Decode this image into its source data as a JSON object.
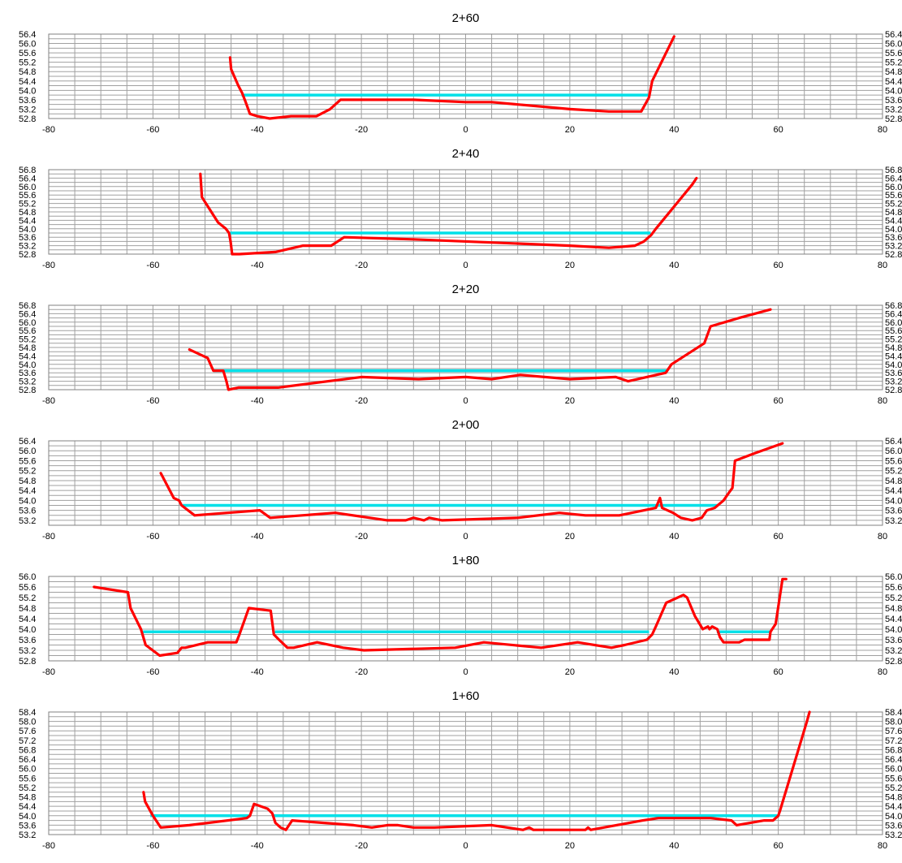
{
  "chart_data": [
    {
      "type": "line",
      "title": "2+60",
      "xlim": [
        -80,
        80
      ],
      "ylim": [
        52.8,
        56.4
      ],
      "x_ticks": [
        -80,
        -60,
        -40,
        -20,
        0,
        20,
        40,
        60,
        80
      ],
      "y_ticks": [
        "52.8",
        "53.2",
        "53.6",
        "54.0",
        "54.4",
        "54.8",
        "55.2",
        "55.6",
        "56.0",
        "56.4"
      ],
      "colors": {
        "ground": "#ff0000",
        "water": "#00e0e8"
      },
      "series": [
        {
          "role": "ground",
          "points": [
            [
              -45.2,
              55.4
            ],
            [
              -45.0,
              54.9
            ],
            [
              -43.6,
              54.2
            ],
            [
              -42.9,
              53.9
            ],
            [
              -42.2,
              53.5
            ],
            [
              -41.4,
              53.0
            ],
            [
              -40,
              52.9
            ],
            [
              -37.6,
              52.8
            ],
            [
              -33.5,
              52.9
            ],
            [
              -28.6,
              52.9
            ],
            [
              -26,
              53.2
            ],
            [
              -24,
              53.6
            ],
            [
              -10,
              53.6
            ],
            [
              0,
              53.5
            ],
            [
              5,
              53.5
            ],
            [
              20,
              53.2
            ],
            [
              27.5,
              53.1
            ],
            [
              33.7,
              53.1
            ],
            [
              35.2,
              53.7
            ],
            [
              35.8,
              54.4
            ],
            [
              40,
              56.3
            ]
          ]
        },
        {
          "role": "water",
          "points": [
            [
              -43.0,
              53.8
            ],
            [
              35.0,
              53.8
            ]
          ]
        }
      ]
    },
    {
      "type": "line",
      "title": "2+40",
      "xlim": [
        -80,
        80
      ],
      "ylim": [
        52.8,
        56.8
      ],
      "x_ticks": [
        -80,
        -60,
        -40,
        -20,
        0,
        20,
        40,
        60,
        80
      ],
      "y_ticks": [
        "52.8",
        "53.2",
        "53.6",
        "54.0",
        "54.4",
        "54.8",
        "55.2",
        "55.6",
        "56.0",
        "56.4",
        "56.8"
      ],
      "colors": {
        "ground": "#ff0000",
        "water": "#00e0e8"
      },
      "series": [
        {
          "role": "ground",
          "points": [
            [
              -50.9,
              56.6
            ],
            [
              -50.6,
              55.5
            ],
            [
              -47.5,
              54.3
            ],
            [
              -46,
              54.0
            ],
            [
              -45.4,
              53.8
            ],
            [
              -45.1,
              53.4
            ],
            [
              -44.8,
              52.8
            ],
            [
              -43.4,
              52.8
            ],
            [
              -36.5,
              52.9
            ],
            [
              -31.2,
              53.2
            ],
            [
              -25.8,
              53.2
            ],
            [
              -23.3,
              53.6
            ],
            [
              -10,
              53.5
            ],
            [
              10,
              53.3
            ],
            [
              20,
              53.2
            ],
            [
              27.5,
              53.1
            ],
            [
              32.5,
              53.2
            ],
            [
              34.2,
              53.4
            ],
            [
              35.6,
              53.7
            ],
            [
              36.5,
              54.0
            ],
            [
              43.5,
              56.1
            ],
            [
              44.3,
              56.4
            ]
          ]
        },
        {
          "role": "water",
          "points": [
            [
              -45.2,
              53.8
            ],
            [
              35.5,
              53.8
            ]
          ]
        }
      ]
    },
    {
      "type": "line",
      "title": "2+20",
      "xlim": [
        -80,
        80
      ],
      "ylim": [
        52.8,
        56.8
      ],
      "x_ticks": [
        -80,
        -60,
        -40,
        -20,
        0,
        20,
        40,
        60,
        80
      ],
      "y_ticks": [
        "52.8",
        "53.2",
        "53.6",
        "54.0",
        "54.4",
        "54.8",
        "55.2",
        "55.6",
        "56.0",
        "56.4",
        "56.8"
      ],
      "colors": {
        "ground": "#ff0000",
        "water": "#00e0e8"
      },
      "series": [
        {
          "role": "ground",
          "points": [
            [
              -53.0,
              54.7
            ],
            [
              -49.5,
              54.3
            ],
            [
              -48.4,
              53.7
            ],
            [
              -46.5,
              53.7
            ],
            [
              -45.9,
              53.2
            ],
            [
              -45.5,
              52.8
            ],
            [
              -43.6,
              52.9
            ],
            [
              -36.0,
              52.9
            ],
            [
              -20,
              53.4
            ],
            [
              -9,
              53.3
            ],
            [
              0,
              53.4
            ],
            [
              5,
              53.3
            ],
            [
              10.5,
              53.5
            ],
            [
              20,
              53.3
            ],
            [
              28.8,
              53.4
            ],
            [
              31.2,
              53.2
            ],
            [
              38.4,
              53.6
            ],
            [
              39.5,
              54.0
            ],
            [
              45.8,
              55.0
            ],
            [
              47.0,
              55.8
            ],
            [
              52.5,
              56.2
            ],
            [
              58.5,
              56.6
            ]
          ]
        },
        {
          "role": "water",
          "points": [
            [
              -48.4,
              53.7
            ],
            [
              38.6,
              53.7
            ]
          ]
        }
      ]
    },
    {
      "type": "line",
      "title": "2+00",
      "xlim": [
        -80,
        80
      ],
      "ylim": [
        53.0,
        56.4
      ],
      "x_ticks": [
        -80,
        -60,
        -40,
        -20,
        0,
        20,
        40,
        60,
        80
      ],
      "y_ticks": [
        "53.2",
        "53.6",
        "54.0",
        "54.4",
        "54.8",
        "55.2",
        "55.6",
        "56.0",
        "56.4"
      ],
      "colors": {
        "ground": "#ff0000",
        "water": "#00e0e8"
      },
      "series": [
        {
          "role": "ground",
          "points": [
            [
              -58.5,
              55.1
            ],
            [
              -56.0,
              54.1
            ],
            [
              -55.0,
              54.0
            ],
            [
              -54.5,
              53.8
            ],
            [
              -52.0,
              53.4
            ],
            [
              -39.5,
              53.6
            ],
            [
              -37.5,
              53.3
            ],
            [
              -25,
              53.5
            ],
            [
              -15,
              53.2
            ],
            [
              -11.5,
              53.2
            ],
            [
              -10,
              53.3
            ],
            [
              -8,
              53.2
            ],
            [
              -7,
              53.3
            ],
            [
              -4.5,
              53.2
            ],
            [
              10,
              53.3
            ],
            [
              18,
              53.5
            ],
            [
              23,
              53.4
            ],
            [
              29.5,
              53.4
            ],
            [
              36.5,
              53.7
            ],
            [
              37.3,
              54.1
            ],
            [
              37.7,
              53.7
            ],
            [
              39.8,
              53.5
            ],
            [
              41.3,
              53.3
            ],
            [
              43.5,
              53.2
            ],
            [
              45.3,
              53.3
            ],
            [
              46.3,
              53.6
            ],
            [
              47.8,
              53.7
            ],
            [
              49.5,
              54.0
            ],
            [
              50.5,
              54.3
            ],
            [
              51.2,
              54.5
            ],
            [
              51.7,
              55.6
            ],
            [
              55.5,
              55.9
            ],
            [
              60.8,
              56.3
            ]
          ]
        },
        {
          "role": "water",
          "points": [
            [
              -54.3,
              53.8
            ],
            [
              48.5,
              53.8
            ]
          ]
        }
      ]
    },
    {
      "type": "line",
      "title": "1+80",
      "xlim": [
        -80,
        80
      ],
      "ylim": [
        52.8,
        56.0
      ],
      "x_ticks": [
        -80,
        -60,
        -40,
        -20,
        0,
        20,
        40,
        60,
        80
      ],
      "y_ticks": [
        "52.8",
        "53.2",
        "53.6",
        "54.0",
        "54.4",
        "54.8",
        "55.2",
        "55.6",
        "56.0"
      ],
      "colors": {
        "ground": "#ff0000",
        "water": "#00e0e8"
      },
      "series": [
        {
          "role": "ground",
          "points": [
            [
              -71.3,
              55.6
            ],
            [
              -64.8,
              55.4
            ],
            [
              -64.3,
              54.8
            ],
            [
              -62.3,
              54.0
            ],
            [
              -61.4,
              53.4
            ],
            [
              -58.7,
              53.0
            ],
            [
              -55.3,
              53.1
            ],
            [
              -54.5,
              53.3
            ],
            [
              -53.8,
              53.3
            ],
            [
              -49.5,
              53.5
            ],
            [
              -45.0,
              53.5
            ],
            [
              -44.0,
              53.5
            ],
            [
              -43.4,
              53.8
            ],
            [
              -41.6,
              54.8
            ],
            [
              -37.4,
              54.7
            ],
            [
              -36.8,
              53.8
            ],
            [
              -35.8,
              53.6
            ],
            [
              -34.2,
              53.3
            ],
            [
              -33.0,
              53.3
            ],
            [
              -28.5,
              53.5
            ],
            [
              -23.5,
              53.3
            ],
            [
              -19.5,
              53.2
            ],
            [
              -2,
              53.3
            ],
            [
              3.5,
              53.5
            ],
            [
              14.5,
              53.3
            ],
            [
              21.5,
              53.5
            ],
            [
              28,
              53.3
            ],
            [
              30.5,
              53.4
            ],
            [
              34.8,
              53.6
            ],
            [
              35.8,
              53.8
            ],
            [
              36.5,
              54.1
            ],
            [
              38.5,
              55.0
            ],
            [
              41.8,
              55.3
            ],
            [
              42.5,
              55.2
            ],
            [
              44.0,
              54.5
            ],
            [
              45.5,
              54.0
            ],
            [
              46.5,
              54.1
            ],
            [
              46.8,
              54.0
            ],
            [
              47.3,
              54.1
            ],
            [
              48.3,
              54.0
            ],
            [
              48.8,
              53.7
            ],
            [
              49.5,
              53.5
            ],
            [
              52.5,
              53.5
            ],
            [
              53.5,
              53.6
            ],
            [
              58.3,
              53.6
            ],
            [
              58.5,
              53.9
            ],
            [
              59.5,
              54.2
            ],
            [
              60.8,
              55.9
            ],
            [
              61.5,
              55.9
            ]
          ]
        },
        {
          "role": "water",
          "points": [
            [
              -61.9,
              53.9
            ],
            [
              -43.4,
              53.9
            ]
          ]
        },
        {
          "role": "water",
          "points": [
            [
              -36.6,
              53.9
            ],
            [
              35.2,
              53.9
            ]
          ]
        },
        {
          "role": "water",
          "points": [
            [
              48.2,
              53.9
            ],
            [
              58.5,
              53.9
            ]
          ]
        }
      ]
    },
    {
      "type": "line",
      "title": "1+60",
      "xlim": [
        -80,
        80
      ],
      "ylim": [
        53.2,
        58.4
      ],
      "x_ticks": [
        -80,
        -60,
        -40,
        -20,
        0,
        20,
        40,
        60,
        80
      ],
      "y_ticks": [
        "53.2",
        "53.6",
        "54.0",
        "54.4",
        "54.8",
        "55.2",
        "55.6",
        "56.0",
        "56.4",
        "56.8",
        "57.2",
        "57.6",
        "58.0",
        "58.4"
      ],
      "colors": {
        "ground": "#ff0000",
        "water": "#00e0e8"
      },
      "series": [
        {
          "role": "ground",
          "points": [
            [
              -61.8,
              55.0
            ],
            [
              -61.5,
              54.6
            ],
            [
              -60,
              54.0
            ],
            [
              -58.5,
              53.5
            ],
            [
              -53,
              53.6
            ],
            [
              -42,
              53.9
            ],
            [
              -41.4,
              54.0
            ],
            [
              -40.6,
              54.5
            ],
            [
              -38,
              54.3
            ],
            [
              -37.1,
              54.1
            ],
            [
              -36.5,
              53.7
            ],
            [
              -35.5,
              53.5
            ],
            [
              -34.5,
              53.4
            ],
            [
              -33.3,
              53.8
            ],
            [
              -21.5,
              53.6
            ],
            [
              -18,
              53.5
            ],
            [
              -15,
              53.6
            ],
            [
              -13,
              53.6
            ],
            [
              -10,
              53.5
            ],
            [
              -6,
              53.5
            ],
            [
              5,
              53.6
            ],
            [
              11,
              53.4
            ],
            [
              12.2,
              53.5
            ],
            [
              13,
              53.4
            ],
            [
              23,
              53.4
            ],
            [
              23.5,
              53.5
            ],
            [
              24,
              53.4
            ],
            [
              34,
              53.8
            ],
            [
              37,
              53.9
            ],
            [
              45,
              53.9
            ],
            [
              47,
              53.9
            ],
            [
              51,
              53.8
            ],
            [
              52,
              53.6
            ],
            [
              57.3,
              53.8
            ],
            [
              59,
              53.8
            ],
            [
              60,
              54.0
            ],
            [
              60.3,
              54.2
            ],
            [
              65.5,
              58.0
            ],
            [
              66,
              58.4
            ]
          ]
        },
        {
          "role": "water",
          "points": [
            [
              -60.5,
              54.0
            ],
            [
              -41.5,
              54.0
            ]
          ]
        },
        {
          "role": "water",
          "points": [
            [
              -37.1,
              54.0
            ],
            [
              60.2,
              54.0
            ]
          ]
        }
      ]
    }
  ]
}
